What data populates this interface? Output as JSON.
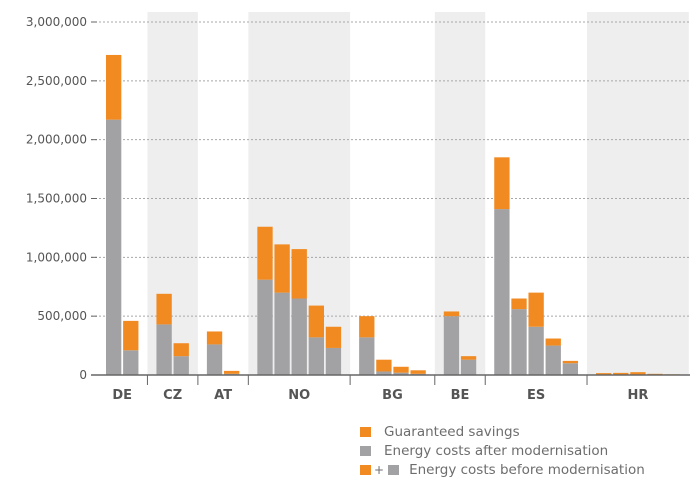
{
  "chart_data": {
    "type": "bar",
    "stacked": true,
    "ylim": [
      0,
      3000000
    ],
    "y_ticks": [
      "0",
      "500,000",
      "1,000,000",
      "1,500,000",
      "2,000,000",
      "2,500,000",
      "3,000,000"
    ],
    "grid": true,
    "legend_position": "bottom-right",
    "groups": [
      {
        "label": "DE",
        "shaded": false,
        "bars": [
          {
            "after": 2170000,
            "savings": 550000
          },
          {
            "after": 210000,
            "savings": 250000
          }
        ]
      },
      {
        "label": "CZ",
        "shaded": true,
        "bars": [
          {
            "after": 430000,
            "savings": 260000
          },
          {
            "after": 160000,
            "savings": 110000
          }
        ]
      },
      {
        "label": "AT",
        "shaded": false,
        "bars": [
          {
            "after": 260000,
            "savings": 110000
          },
          {
            "after": 10000,
            "savings": 25000
          }
        ]
      },
      {
        "label": "NO",
        "shaded": true,
        "bars": [
          {
            "after": 810000,
            "savings": 450000
          },
          {
            "after": 700000,
            "savings": 410000
          },
          {
            "after": 650000,
            "savings": 420000
          },
          {
            "after": 320000,
            "savings": 270000
          },
          {
            "after": 230000,
            "savings": 180000
          }
        ]
      },
      {
        "label": "BG",
        "shaded": false,
        "bars": [
          {
            "after": 320000,
            "savings": 180000
          },
          {
            "after": 30000,
            "savings": 100000
          },
          {
            "after": 20000,
            "savings": 50000
          },
          {
            "after": 10000,
            "savings": 30000
          }
        ]
      },
      {
        "label": "BE",
        "shaded": true,
        "bars": [
          {
            "after": 500000,
            "savings": 40000
          },
          {
            "after": 130000,
            "savings": 30000
          }
        ]
      },
      {
        "label": "ES",
        "shaded": false,
        "bars": [
          {
            "after": 1410000,
            "savings": 440000
          },
          {
            "after": 560000,
            "savings": 90000
          },
          {
            "after": 410000,
            "savings": 290000
          },
          {
            "after": 250000,
            "savings": 60000
          },
          {
            "after": 100000,
            "savings": 20000
          }
        ]
      },
      {
        "label": "HR",
        "shaded": true,
        "bars": [
          {
            "after": 4000,
            "savings": 12000
          },
          {
            "after": 4000,
            "savings": 14000
          },
          {
            "after": 4000,
            "savings": 20000
          },
          {
            "after": 2000,
            "savings": 8000
          },
          {
            "after": 2000,
            "savings": 4000
          }
        ]
      }
    ],
    "series": [
      {
        "name": "Guaranteed savings",
        "key": "savings",
        "color": "#f08a21"
      },
      {
        "name": "Energy costs after modernisation",
        "key": "after",
        "color": "#a2a2a4"
      }
    ],
    "combined_legend": {
      "name": "Energy costs before modernisation",
      "plus": "+"
    },
    "colors": {
      "shade": "#eeeeee",
      "grid": "#a8a8a8",
      "axis": "#666666"
    }
  }
}
